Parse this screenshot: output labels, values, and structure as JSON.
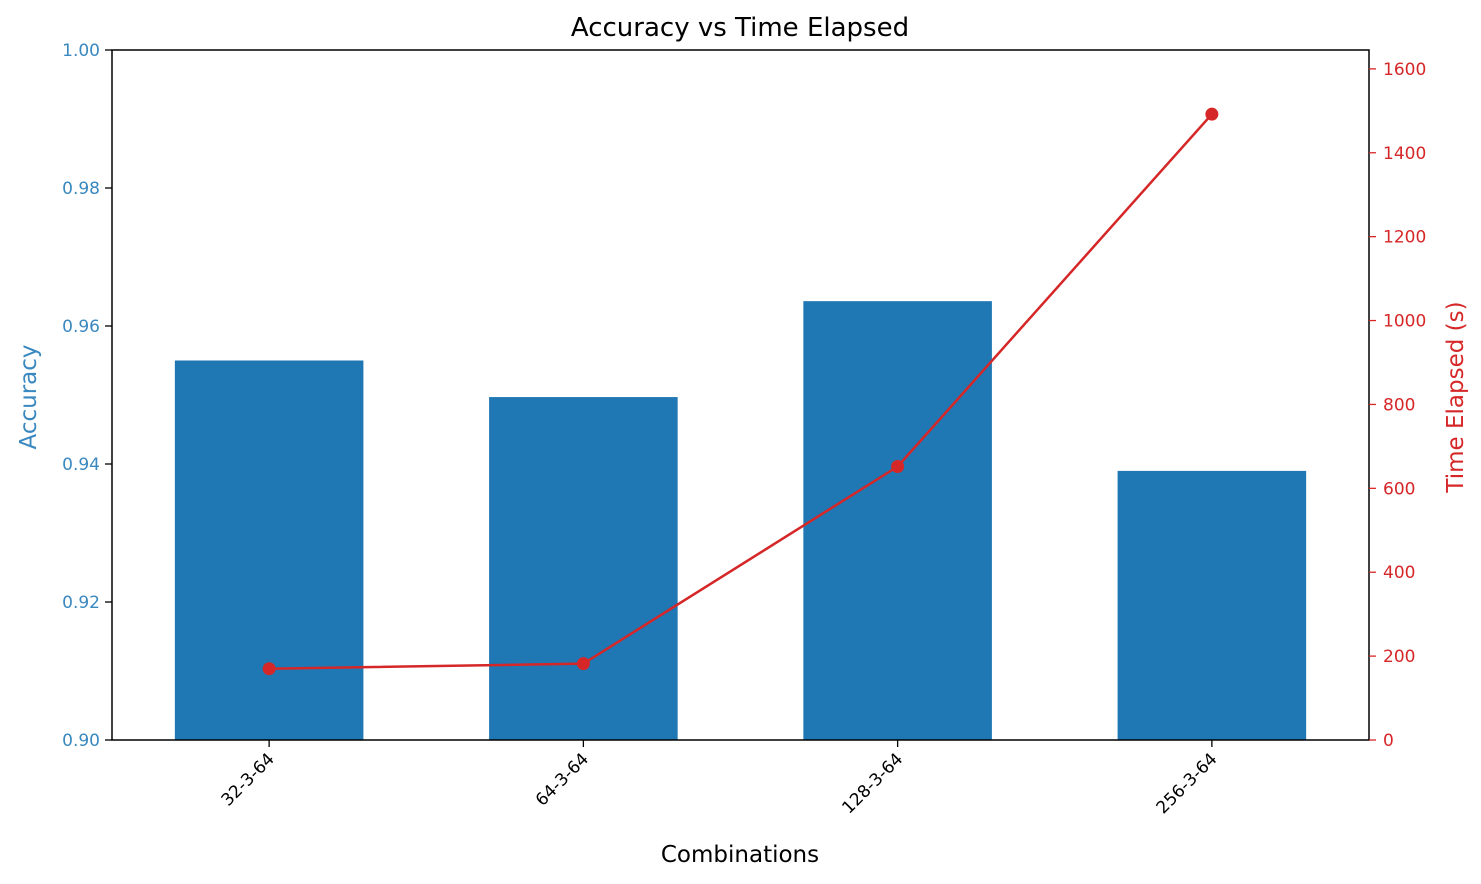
{
  "chart_data": {
    "type": "bar",
    "title": "Accuracy vs Time Elapsed",
    "xlabel": "Combinations",
    "categories": [
      "32-3-64",
      "64-3-64",
      "128-3-64",
      "256-3-64"
    ],
    "series": [
      {
        "name": "Accuracy",
        "type": "bar",
        "axis": "left",
        "color": "#1f77b4",
        "values": [
          0.955,
          0.9497,
          0.9636,
          0.939
        ]
      },
      {
        "name": "Time Elapsed (s)",
        "type": "line",
        "axis": "right",
        "color": "#d62728",
        "marker": "circle",
        "values": [
          170,
          182,
          652,
          1492
        ]
      }
    ],
    "y_left": {
      "label": "Accuracy",
      "color": "#3a88c0",
      "ylim": [
        0.9,
        1.0
      ],
      "ticks": [
        0.9,
        0.92,
        0.94,
        0.96,
        0.98,
        1.0
      ],
      "tick_labels": [
        "0.90",
        "0.92",
        "0.94",
        "0.96",
        "0.98",
        "1.00"
      ]
    },
    "y_right": {
      "label": "Time Elapsed (s)",
      "color": "#d62728",
      "ylim": [
        0,
        1645
      ],
      "ticks": [
        0,
        200,
        400,
        600,
        800,
        1000,
        1200,
        1400,
        1600
      ],
      "tick_labels": [
        "0",
        "200",
        "400",
        "600",
        "800",
        "1000",
        "1200",
        "1400",
        "1600"
      ]
    },
    "grid": false,
    "legend": "none"
  }
}
